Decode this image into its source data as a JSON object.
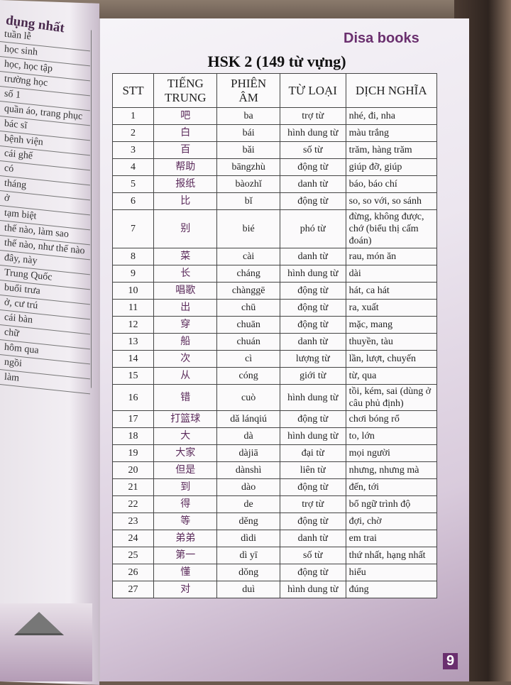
{
  "left_page": {
    "title": "dụng nhất",
    "items": [
      "tuần lễ",
      "học sinh",
      "học, học tập",
      "trường học",
      "số 1",
      "quần áo, trang phục",
      "bác sĩ",
      "bệnh viện",
      "cái ghế",
      "có",
      "tháng",
      "ở",
      "tạm biệt",
      "thế nào, làm sao",
      "thế nào, như thế nào",
      "đây, này",
      "Trung Quốc",
      "buổi trưa",
      "ở, cư trú",
      "cái bàn",
      "chữ",
      "hôm qua",
      "ngồi",
      "làm"
    ]
  },
  "brand": "Disa books",
  "title": "HSK 2 (149 từ vựng)",
  "page_number": "9",
  "colors": {
    "accent": "#6a2f6e"
  },
  "table": {
    "headers": [
      "STT",
      "TIẾNG TRUNG",
      "PHIÊN ÂM",
      "TỪ LOẠI",
      "DỊCH NGHĨA"
    ],
    "rows": [
      [
        "1",
        "吧",
        "ba",
        "trợ từ",
        "nhé, đi, nha"
      ],
      [
        "2",
        "白",
        "bái",
        "hình dung từ",
        "màu trắng"
      ],
      [
        "3",
        "百",
        "bǎi",
        "số từ",
        "trăm, hàng trăm"
      ],
      [
        "4",
        "帮助",
        "bāngzhù",
        "động từ",
        "giúp đỡ, giúp"
      ],
      [
        "5",
        "报纸",
        "bàozhǐ",
        "danh từ",
        "báo, báo chí"
      ],
      [
        "6",
        "比",
        "bǐ",
        "động từ",
        "so, so với, so sánh"
      ],
      [
        "7",
        "别",
        "bié",
        "phó từ",
        "đừng, không được, chớ (biểu thị cấm đoán)"
      ],
      [
        "8",
        "菜",
        "cài",
        "danh từ",
        "rau, món ăn"
      ],
      [
        "9",
        "长",
        "cháng",
        "hình dung từ",
        "dài"
      ],
      [
        "10",
        "唱歌",
        "chànggē",
        "động từ",
        "hát, ca hát"
      ],
      [
        "11",
        "出",
        "chū",
        "động từ",
        "ra, xuất"
      ],
      [
        "12",
        "穿",
        "chuān",
        "động từ",
        "mặc, mang"
      ],
      [
        "13",
        "船",
        "chuán",
        "danh từ",
        "thuyền, tàu"
      ],
      [
        "14",
        "次",
        "cì",
        "lượng từ",
        "lần, lượt, chuyến"
      ],
      [
        "15",
        "从",
        "cóng",
        "giới từ",
        "từ, qua"
      ],
      [
        "16",
        "错",
        "cuò",
        "hình dung từ",
        "tồi, kém, sai (dùng ở câu phủ định)"
      ],
      [
        "17",
        "打篮球",
        "dǎ lánqiú",
        "động từ",
        "chơi bóng rổ"
      ],
      [
        "18",
        "大",
        "dà",
        "hình dung từ",
        "to, lớn"
      ],
      [
        "19",
        "大家",
        "dàjiā",
        "đại từ",
        "mọi người"
      ],
      [
        "20",
        "但是",
        "dànshì",
        "liên từ",
        "nhưng, nhưng mà"
      ],
      [
        "21",
        "到",
        "dào",
        "động từ",
        "đến, tới"
      ],
      [
        "22",
        "得",
        "de",
        "trợ từ",
        "bổ ngữ trình độ"
      ],
      [
        "23",
        "等",
        "děng",
        "động từ",
        "đợi, chờ"
      ],
      [
        "24",
        "弟弟",
        "dìdi",
        "danh từ",
        "em trai"
      ],
      [
        "25",
        "第一",
        "dì yī",
        "số từ",
        "thứ nhất, hạng nhất"
      ],
      [
        "26",
        "懂",
        "dǒng",
        "động từ",
        "hiểu"
      ],
      [
        "27",
        "对",
        "duì",
        "hình dung từ",
        "đúng"
      ]
    ]
  }
}
